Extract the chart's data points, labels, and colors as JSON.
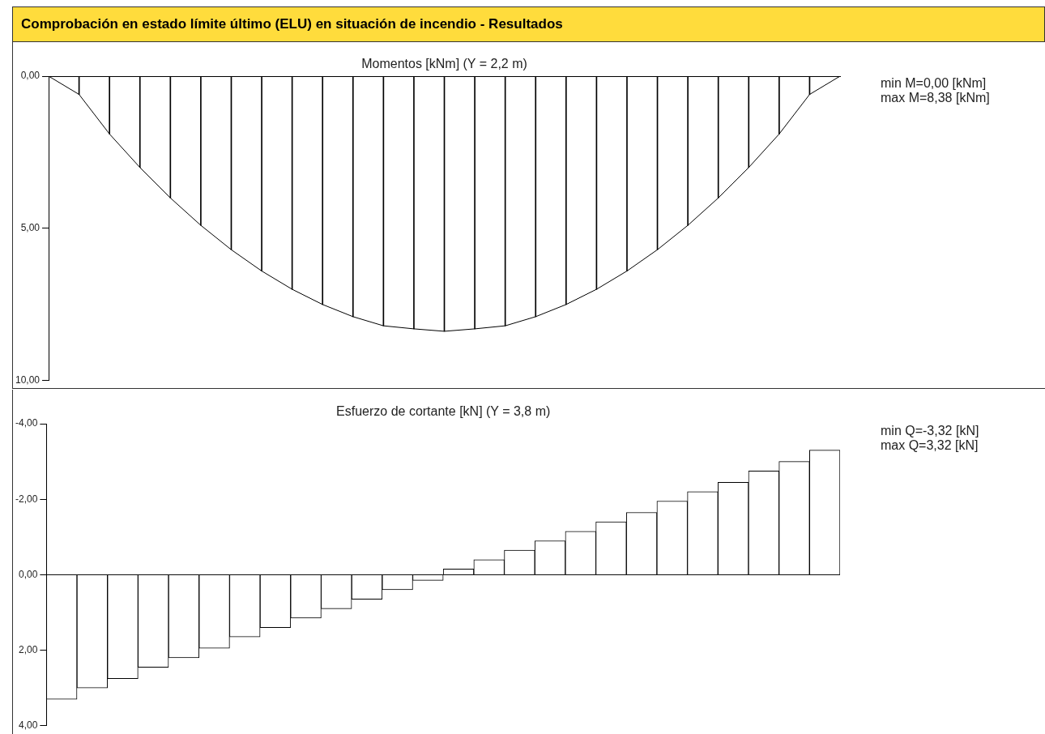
{
  "chart_data": [
    {
      "type": "line",
      "title": "Comprobación en estado límite último (ELU) en situación de incendio - Resultados",
      "subtitle": "Momentos [kNm] (Y = 2,2 m)",
      "categories": [
        null,
        null,
        null,
        null,
        null,
        null,
        null,
        null,
        null,
        null,
        null,
        null,
        null,
        null,
        null,
        null,
        null,
        null,
        null,
        null,
        null,
        null,
        null,
        null,
        null,
        null,
        null
      ],
      "series": [
        {
          "color": "#000000",
          "values": [
            0,
            0.6,
            1.9,
            3.0,
            4.0,
            4.9,
            5.7,
            6.4,
            7.0,
            7.5,
            7.9,
            8.2,
            8.3,
            8.38,
            8.3,
            8.2,
            7.9,
            7.5,
            7.0,
            6.4,
            5.7,
            4.9,
            4.0,
            3.0,
            1.9,
            0.6,
            0
          ]
        },
        {
          "type": "bar",
          "color": "#000000",
          "values": [
            0,
            0.6,
            1.9,
            3.0,
            4.0,
            4.9,
            5.7,
            6.4,
            7.0,
            7.5,
            7.9,
            8.2,
            8.3,
            8.38,
            8.3,
            8.2,
            7.9,
            7.5,
            7.0,
            6.4,
            5.7,
            4.9,
            4.0,
            3.0,
            1.9,
            0.6,
            0
          ]
        }
      ],
      "ylim": [
        10,
        0
      ],
      "yticks": [
        {
          "value": 0,
          "label": "0,00"
        },
        {
          "value": 5,
          "label": "5,00"
        },
        {
          "value": 10,
          "label": "10,00"
        }
      ],
      "marker": "none",
      "grid": false,
      "legend": false,
      "annotations": [
        "min M=0,00 [kNm]",
        "max M=8,38 [kNm]"
      ]
    },
    {
      "type": "bar",
      "title": "Esfuerzo de cortante [kN] (Y = 3,8 m)",
      "categories": [
        null,
        null,
        null,
        null,
        null,
        null,
        null,
        null,
        null,
        null,
        null,
        null,
        null,
        null,
        null,
        null,
        null,
        null,
        null,
        null,
        null,
        null,
        null,
        null,
        null,
        null
      ],
      "series": [
        {
          "color": "#ffffff",
          "values": [
            3.3,
            3.0,
            2.75,
            2.45,
            2.2,
            1.95,
            1.65,
            1.4,
            1.15,
            0.9,
            0.65,
            0.4,
            0.15,
            -0.15,
            -0.4,
            -0.65,
            -0.9,
            -1.15,
            -1.4,
            -1.65,
            -1.95,
            -2.2,
            -2.45,
            -2.75,
            -3.0,
            -3.3
          ]
        }
      ],
      "ylim": [
        4,
        -4
      ],
      "yticks": [
        {
          "value": -4,
          "label": "-4,00"
        },
        {
          "value": -2,
          "label": "-2,00"
        },
        {
          "value": 0,
          "label": "0,00"
        },
        {
          "value": 2,
          "label": "2,00"
        },
        {
          "value": 4,
          "label": "4,00"
        }
      ],
      "grid": false,
      "legend": false,
      "ref_lines": [
        {
          "axis": "y",
          "value": 0
        }
      ],
      "annotations": [
        "min Q=-3,32 [kN]",
        "max Q=3,32 [kN]"
      ]
    }
  ]
}
